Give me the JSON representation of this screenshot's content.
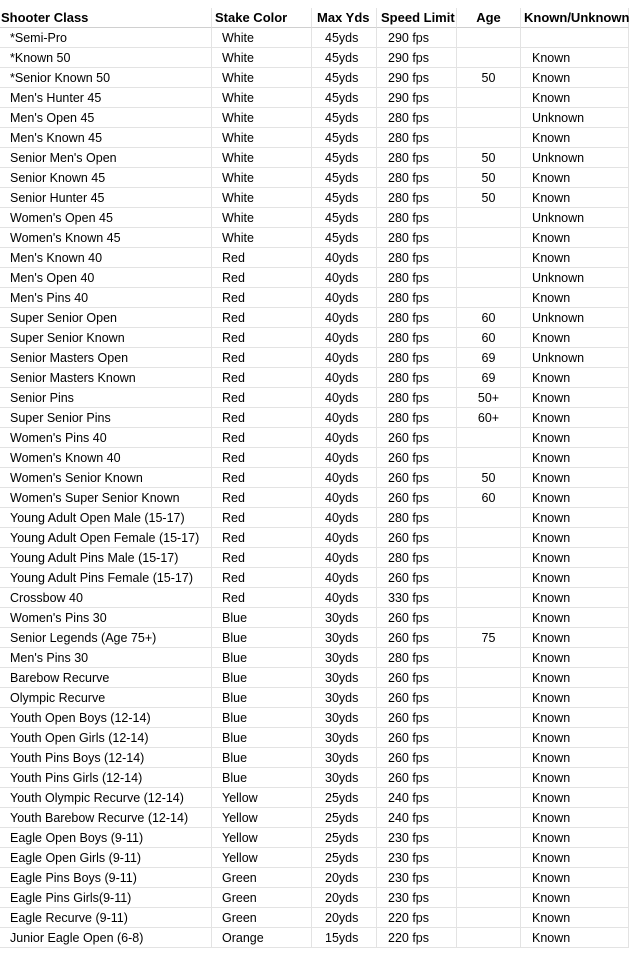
{
  "table": {
    "header": [
      "Shooter Class",
      "Stake Color",
      "Max Yds",
      "Speed Limit",
      "Age",
      "Known/Unknown"
    ],
    "rows": [
      [
        "*Semi-Pro",
        "White",
        "45yds",
        "290 fps",
        null,
        null
      ],
      [
        "*Known 50",
        "White",
        "45yds",
        "290 fps",
        null,
        "Known"
      ],
      [
        "*Senior Known 50",
        "White",
        "45yds",
        "290 fps",
        "50",
        "Known"
      ],
      [
        "Men's Hunter 45",
        "White",
        "45yds",
        "290 fps",
        null,
        "Known"
      ],
      [
        "Men's Open 45",
        "White",
        "45yds",
        "280 fps",
        null,
        "Unknown"
      ],
      [
        "Men's Known 45",
        "White",
        "45yds",
        "280 fps",
        null,
        "Known"
      ],
      [
        "Senior Men's Open",
        "White",
        "45yds",
        "280 fps",
        "50",
        "Unknown"
      ],
      [
        "Senior Known 45",
        "White",
        "45yds",
        "280 fps",
        "50",
        "Known"
      ],
      [
        "Senior Hunter 45",
        "White",
        "45yds",
        "280 fps",
        "50",
        "Known"
      ],
      [
        "Women's Open 45",
        "White",
        "45yds",
        "280 fps",
        null,
        "Unknown"
      ],
      [
        "Women's Known 45",
        "White",
        "45yds",
        "280 fps",
        null,
        "Known"
      ],
      [
        "Men's Known 40",
        "Red",
        "40yds",
        "280 fps",
        null,
        "Known"
      ],
      [
        "Men's Open 40",
        "Red",
        "40yds",
        "280 fps",
        null,
        "Unknown"
      ],
      [
        "Men's Pins 40",
        "Red",
        "40yds",
        "280 fps",
        null,
        "Known"
      ],
      [
        "Super Senior Open",
        "Red",
        "40yds",
        "280 fps",
        "60",
        "Unknown"
      ],
      [
        "Super Senior Known",
        "Red",
        "40yds",
        "280 fps",
        "60",
        "Known"
      ],
      [
        "Senior Masters Open",
        "Red",
        "40yds",
        "280 fps",
        "69",
        "Unknown"
      ],
      [
        "Senior Masters Known",
        "Red",
        "40yds",
        "280 fps",
        "69",
        "Known"
      ],
      [
        "Senior Pins",
        "Red",
        "40yds",
        "280 fps",
        "50+",
        "Known"
      ],
      [
        "Super Senior Pins",
        "Red",
        "40yds",
        "280 fps",
        "60+",
        "Known"
      ],
      [
        "Women's Pins 40",
        "Red",
        "40yds",
        "260 fps",
        null,
        "Known"
      ],
      [
        "Women's Known 40",
        "Red",
        "40yds",
        "260 fps",
        null,
        "Known"
      ],
      [
        "Women's Senior Known",
        "Red",
        "40yds",
        "260 fps",
        "50",
        "Known"
      ],
      [
        "Women's Super Senior Known",
        "Red",
        "40yds",
        "260 fps",
        "60",
        "Known"
      ],
      [
        "Young Adult Open Male (15-17)",
        "Red",
        "40yds",
        "280 fps",
        null,
        "Known"
      ],
      [
        "Young Adult Open Female (15-17)",
        "Red",
        "40yds",
        "260 fps",
        null,
        "Known"
      ],
      [
        "Young Adult Pins Male (15-17)",
        "Red",
        "40yds",
        "280 fps",
        null,
        "Known"
      ],
      [
        "Young Adult Pins Female (15-17)",
        "Red",
        "40yds",
        "260 fps",
        null,
        "Known"
      ],
      [
        "Crossbow 40",
        "Red",
        "40yds",
        "330 fps",
        null,
        "Known"
      ],
      [
        "Women's Pins 30",
        "Blue",
        "30yds",
        "260 fps",
        null,
        "Known"
      ],
      [
        "Senior Legends (Age 75+)",
        "Blue",
        "30yds",
        "260 fps",
        "75",
        "Known"
      ],
      [
        "Men's Pins 30",
        "Blue",
        "30yds",
        "280 fps",
        null,
        "Known"
      ],
      [
        "Barebow Recurve",
        "Blue",
        "30yds",
        "260 fps",
        null,
        "Known"
      ],
      [
        "Olympic Recurve",
        "Blue",
        "30yds",
        "260 fps",
        null,
        "Known"
      ],
      [
        "Youth Open Boys (12-14)",
        "Blue",
        "30yds",
        "260 fps",
        null,
        "Known"
      ],
      [
        "Youth Open Girls (12-14)",
        "Blue",
        "30yds",
        "260 fps",
        null,
        "Known"
      ],
      [
        "Youth Pins Boys (12-14)",
        "Blue",
        "30yds",
        "260 fps",
        null,
        "Known"
      ],
      [
        "Youth Pins Girls (12-14)",
        "Blue",
        "30yds",
        "260 fps",
        null,
        "Known"
      ],
      [
        "Youth Olympic Recurve (12-14)",
        "Yellow",
        "25yds",
        "240 fps",
        null,
        "Known"
      ],
      [
        "Youth Barebow Recurve (12-14)",
        "Yellow",
        "25yds",
        "240 fps",
        null,
        "Known"
      ],
      [
        "Eagle Open Boys (9-11)",
        "Yellow",
        "25yds",
        "230 fps",
        null,
        "Known"
      ],
      [
        "Eagle Open Girls (9-11)",
        "Yellow",
        "25yds",
        "230 fps",
        null,
        "Known"
      ],
      [
        "Eagle Pins Boys (9-11)",
        "Green",
        "20yds",
        "230 fps",
        null,
        "Known"
      ],
      [
        "Eagle Pins Girls(9-11)",
        "Green",
        "20yds",
        "230 fps",
        null,
        "Known"
      ],
      [
        "Eagle Recurve (9-11)",
        "Green",
        "20yds",
        "220 fps",
        null,
        "Known"
      ],
      [
        "Junior Eagle Open (6-8)",
        "Orange",
        "15yds",
        "220 fps",
        null,
        "Known"
      ]
    ]
  }
}
